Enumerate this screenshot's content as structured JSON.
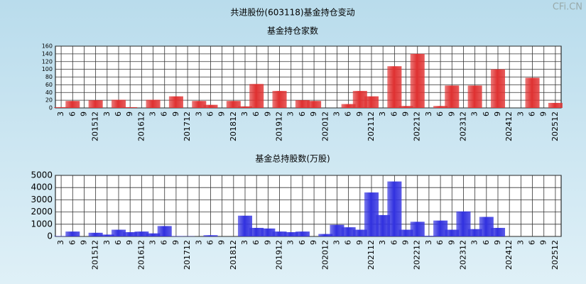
{
  "title": "共进股份(603118)基金持仓变动",
  "watermark": "CFi.CN",
  "chart_data": [
    {
      "type": "bar",
      "title": "基金持仓家数",
      "color": "#e03232",
      "grid": true,
      "categories": [
        "3",
        "6",
        "9",
        "201512",
        "3",
        "6",
        "9",
        "201612",
        "3",
        "6",
        "9",
        "201712",
        "3",
        "6",
        "9",
        "201812",
        "3",
        "6",
        "9",
        "201912",
        "3",
        "6",
        "9",
        "202012",
        "3",
        "6",
        "9",
        "202112",
        "3",
        "6",
        "9",
        "202212",
        "3",
        "6",
        "9",
        "202312",
        "3",
        "6",
        "9",
        "202412",
        "3",
        "6",
        "9",
        "202512"
      ],
      "values": [
        2,
        18,
        0,
        20,
        0,
        21,
        2,
        0,
        21,
        0,
        30,
        0,
        18,
        8,
        0,
        18,
        4,
        62,
        0,
        44,
        0,
        20,
        18,
        0,
        0,
        10,
        44,
        30,
        0,
        108,
        5,
        140,
        0,
        5,
        58,
        0,
        58,
        0,
        100,
        0,
        0,
        78,
        0,
        13
      ],
      "ylim": [
        0,
        160
      ],
      "yticks": [
        0,
        20,
        40,
        60,
        80,
        100,
        120,
        140,
        160
      ]
    },
    {
      "type": "bar",
      "title": "基金总持股数(万股)",
      "color": "#3232e0",
      "grid": true,
      "categories": [
        "3",
        "6",
        "9",
        "201512",
        "3",
        "6",
        "9",
        "201612",
        "3",
        "6",
        "9",
        "201712",
        "3",
        "6",
        "9",
        "201812",
        "3",
        "6",
        "9",
        "201912",
        "3",
        "6",
        "9",
        "202012",
        "3",
        "6",
        "9",
        "202112",
        "3",
        "6",
        "9",
        "202212",
        "3",
        "6",
        "9",
        "202312",
        "3",
        "6",
        "9",
        "202412",
        "3",
        "6",
        "9",
        "202512"
      ],
      "values": [
        30,
        400,
        0,
        300,
        150,
        550,
        350,
        400,
        250,
        850,
        30,
        20,
        0,
        100,
        0,
        0,
        1700,
        700,
        650,
        400,
        350,
        400,
        0,
        200,
        950,
        750,
        550,
        3600,
        1750,
        4500,
        550,
        1200,
        50,
        1300,
        550,
        2050,
        600,
        1600,
        700,
        0,
        0,
        0,
        0,
        0
      ],
      "ylim": [
        0,
        5000
      ],
      "yticks": [
        0,
        1000,
        2000,
        3000,
        4000,
        5000
      ]
    }
  ]
}
